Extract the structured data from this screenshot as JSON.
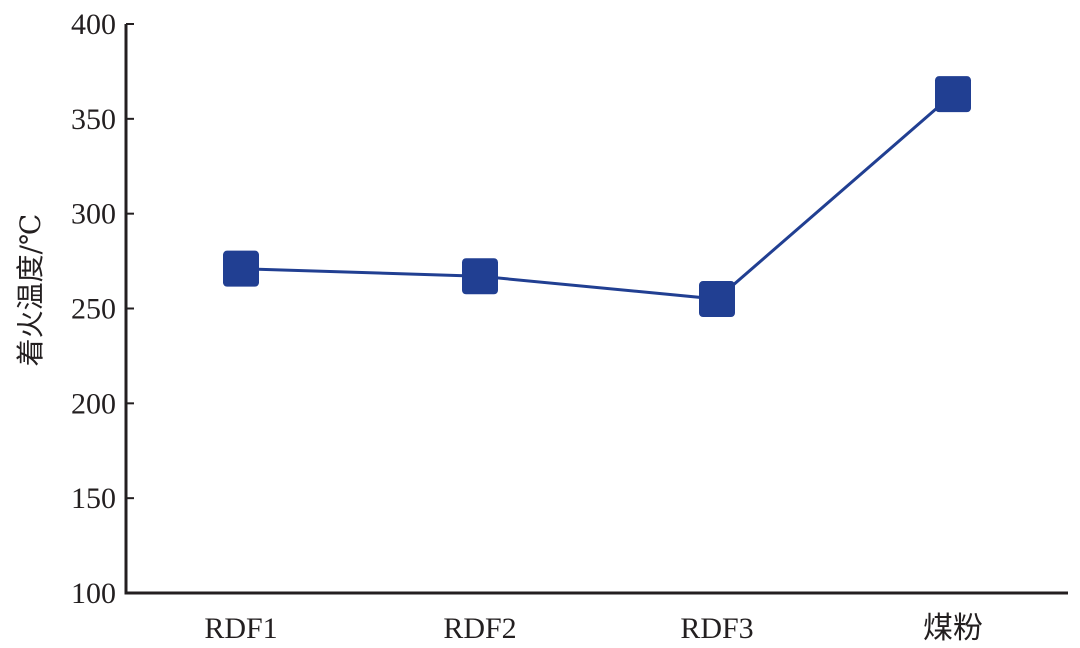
{
  "chart_data": {
    "type": "line",
    "categories": [
      "RDF1",
      "RDF2",
      "RDF3",
      "煤粉"
    ],
    "series": [
      {
        "values": [
          271,
          267,
          255,
          363
        ]
      }
    ],
    "xlabel": "",
    "ylabel": "着火温度/℃",
    "ylim": [
      100,
      400
    ],
    "yticks": [
      100,
      150,
      200,
      250,
      300,
      350,
      400
    ],
    "grid": false,
    "legend": "none",
    "colors": {
      "series": "#213f92",
      "marker": "#213f92",
      "axis": "#231f20",
      "text": "#231f20"
    },
    "marker": "square"
  }
}
